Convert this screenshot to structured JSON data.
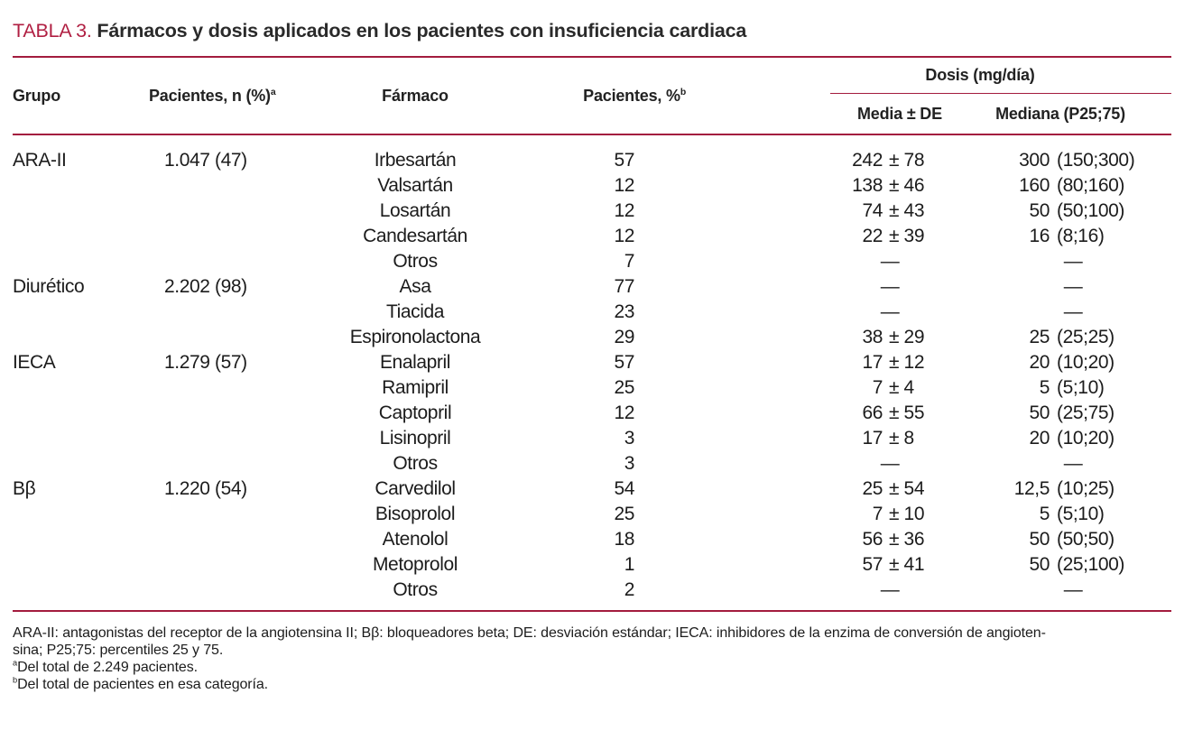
{
  "title": {
    "label": "TABLA 3.",
    "text": "Fármacos y dosis aplicados en los pacientes con insuficiencia cardiaca"
  },
  "table": {
    "headers": {
      "grupo": "Grupo",
      "pacientes_n": {
        "text": "Pacientes, n (%)",
        "sup": "a"
      },
      "farmaco": "Fármaco",
      "pacientes_pct": {
        "text": "Pacientes, %",
        "sup": "b"
      },
      "dosis_group": "Dosis (mg/día)",
      "media": "Media ± DE",
      "mediana": "Mediana (P25;75)"
    },
    "dash": "—",
    "rows": [
      {
        "grupo": "ARA-II",
        "pacientes_n": "1.047 (47)",
        "farmaco": "Irbesartán",
        "pct": "57",
        "media": "242 ± 78",
        "mediana": "300 (150;300)"
      },
      {
        "grupo": "",
        "pacientes_n": "",
        "farmaco": "Valsartán",
        "pct": "12",
        "media": "138 ± 46",
        "mediana": "160 (80;160)"
      },
      {
        "grupo": "",
        "pacientes_n": "",
        "farmaco": "Losartán",
        "pct": "12",
        "media": "74 ± 43",
        "mediana": "50 (50;100)"
      },
      {
        "grupo": "",
        "pacientes_n": "",
        "farmaco": "Candesartán",
        "pct": "12",
        "media": "22 ± 39",
        "mediana": "16 (8;16)"
      },
      {
        "grupo": "",
        "pacientes_n": "",
        "farmaco": "Otros",
        "pct": "7",
        "media": "—",
        "mediana": "—"
      },
      {
        "grupo": "Diurético",
        "pacientes_n": "2.202 (98)",
        "farmaco": "Asa",
        "pct": "77",
        "media": "—",
        "mediana": "—"
      },
      {
        "grupo": "",
        "pacientes_n": "",
        "farmaco": "Tiacida",
        "pct": "23",
        "media": "—",
        "mediana": "—"
      },
      {
        "grupo": "",
        "pacientes_n": "",
        "farmaco": "Espironolactona",
        "pct": "29",
        "media": "38 ± 29",
        "mediana": "25 (25;25)"
      },
      {
        "grupo": "IECA",
        "pacientes_n": "1.279 (57)",
        "farmaco": "Enalapril",
        "pct": "57",
        "media": "17 ± 12",
        "mediana": "20 (10;20)"
      },
      {
        "grupo": "",
        "pacientes_n": "",
        "farmaco": "Ramipril",
        "pct": "25",
        "media": "7 ± 4",
        "mediana": "5 (5;10)"
      },
      {
        "grupo": "",
        "pacientes_n": "",
        "farmaco": "Captopril",
        "pct": "12",
        "media": "66 ± 55",
        "mediana": "50 (25;75)"
      },
      {
        "grupo": "",
        "pacientes_n": "",
        "farmaco": "Lisinopril",
        "pct": "3",
        "media": "17 ± 8",
        "mediana": "20 (10;20)"
      },
      {
        "grupo": "",
        "pacientes_n": "",
        "farmaco": "Otros",
        "pct": "3",
        "media": "—",
        "mediana": "—"
      },
      {
        "grupo": "Bβ",
        "pacientes_n": "1.220 (54)",
        "farmaco": "Carvedilol",
        "pct": "54",
        "media": "25 ± 54",
        "mediana": "12,5 (10;25)"
      },
      {
        "grupo": "",
        "pacientes_n": "",
        "farmaco": "Bisoprolol",
        "pct": "25",
        "media": "7 ± 10",
        "mediana": "5 (5;10)"
      },
      {
        "grupo": "",
        "pacientes_n": "",
        "farmaco": "Atenolol",
        "pct": "18",
        "media": "56 ± 36",
        "mediana": "50 (50;50)"
      },
      {
        "grupo": "",
        "pacientes_n": "",
        "farmaco": "Metoprolol",
        "pct": "1",
        "media": "57 ± 41",
        "mediana": "50 (25;100)"
      },
      {
        "grupo": "",
        "pacientes_n": "",
        "farmaco": "Otros",
        "pct": "2",
        "media": "—",
        "mediana": "—"
      }
    ]
  },
  "footnotes": [
    {
      "sup": "",
      "text": "ARA-II: antagonistas del receptor de la angiotensina II; Bβ: bloqueadores beta; DE: desviación estándar; IECA: inhibidores de la enzima de conversión de angioten-"
    },
    {
      "sup": "",
      "text": "sina; P25;75: percentiles 25 y 75."
    },
    {
      "sup": "a",
      "text": "Del total de 2.249 pacientes."
    },
    {
      "sup": "b",
      "text": "Del total de pacientes en esa categoría."
    }
  ],
  "colors": {
    "accent_rule": "#a31c3e",
    "title_red": "#b01f42",
    "text": "#1c1c1c"
  }
}
